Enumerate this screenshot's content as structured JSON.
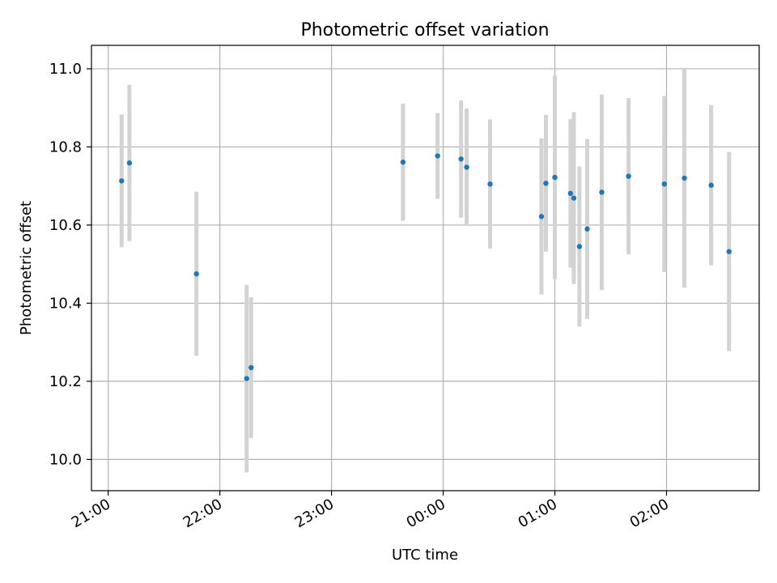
{
  "chart_data": {
    "type": "scatter",
    "title": "Photometric offset variation",
    "xlabel": "UTC time",
    "ylabel": "Photometric offset",
    "x_ticks": [
      "21:00",
      "22:00",
      "23:00",
      "00:00",
      "01:00",
      "02:00"
    ],
    "x_ticks_hours": [
      0,
      1,
      2,
      3,
      4,
      5
    ],
    "x_origin_time": "21:00",
    "xlim_hours": [
      -0.15,
      5.83
    ],
    "ylim": [
      9.92,
      11.06
    ],
    "y_ticks": [
      "10.0",
      "10.2",
      "10.4",
      "10.6",
      "10.8",
      "11.0"
    ],
    "y_ticks_values": [
      10.0,
      10.2,
      10.4,
      10.6,
      10.8,
      11.0
    ],
    "grid": true,
    "point_color": "#1f77b4",
    "errorbar_color": "#d3d3d3",
    "points": [
      {
        "t": 0.12,
        "y": 10.713,
        "err": 0.17
      },
      {
        "t": 0.19,
        "y": 10.759,
        "err": 0.2
      },
      {
        "t": 0.79,
        "y": 10.475,
        "err": 0.21
      },
      {
        "t": 1.24,
        "y": 10.207,
        "err": 0.24
      },
      {
        "t": 1.28,
        "y": 10.235,
        "err": 0.18
      },
      {
        "t": 2.64,
        "y": 10.761,
        "err": 0.15
      },
      {
        "t": 2.95,
        "y": 10.777,
        "err": 0.11
      },
      {
        "t": 3.16,
        "y": 10.769,
        "err": 0.15
      },
      {
        "t": 3.21,
        "y": 10.748,
        "err": 0.15
      },
      {
        "t": 3.42,
        "y": 10.705,
        "err": 0.165
      },
      {
        "t": 3.88,
        "y": 10.622,
        "err": 0.2
      },
      {
        "t": 3.92,
        "y": 10.707,
        "err": 0.175
      },
      {
        "t": 4.0,
        "y": 10.722,
        "err": 0.26
      },
      {
        "t": 4.14,
        "y": 10.681,
        "err": 0.19
      },
      {
        "t": 4.17,
        "y": 10.669,
        "err": 0.22
      },
      {
        "t": 4.22,
        "y": 10.545,
        "err": 0.205
      },
      {
        "t": 4.29,
        "y": 10.59,
        "err": 0.23
      },
      {
        "t": 4.42,
        "y": 10.684,
        "err": 0.25
      },
      {
        "t": 4.66,
        "y": 10.725,
        "err": 0.2
      },
      {
        "t": 4.98,
        "y": 10.705,
        "err": 0.225
      },
      {
        "t": 5.16,
        "y": 10.72,
        "err": 0.28
      },
      {
        "t": 5.4,
        "y": 10.702,
        "err": 0.205
      },
      {
        "t": 5.56,
        "y": 10.532,
        "err": 0.255
      }
    ]
  }
}
